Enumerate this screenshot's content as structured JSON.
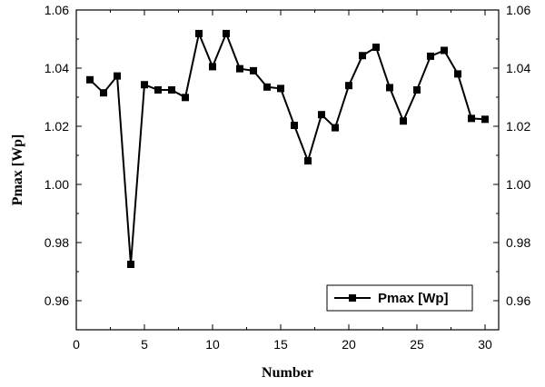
{
  "chart_data": {
    "type": "line",
    "title": "",
    "xlabel": "Number",
    "ylabel": "Pmax [Wp]",
    "xlim": [
      0,
      31
    ],
    "ylim": [
      0.95,
      1.06
    ],
    "xticks": [
      0,
      5,
      10,
      15,
      20,
      25,
      30
    ],
    "xtick_labels": [
      "0",
      "5",
      "10",
      "15",
      "20",
      "25",
      "30"
    ],
    "yticks": [
      0.96,
      0.98,
      1.0,
      1.02,
      1.04,
      1.06
    ],
    "ytick_labels": [
      "0.96",
      "0.98",
      "1.00",
      "1.02",
      "1.04",
      "1.06"
    ],
    "right_axis_mirrored": true,
    "grid": false,
    "legend_position": "bottom-right",
    "series": [
      {
        "name": "Pmax [Wp]",
        "color": "#000000",
        "marker": "square",
        "x": [
          1,
          2,
          3,
          4,
          5,
          6,
          7,
          8,
          9,
          10,
          11,
          12,
          13,
          14,
          15,
          16,
          17,
          18,
          19,
          20,
          21,
          22,
          23,
          24,
          25,
          26,
          27,
          28,
          29,
          30
        ],
        "values": [
          1.036,
          1.0315,
          1.0373,
          0.9725,
          1.0343,
          1.0325,
          1.0325,
          1.0299,
          1.0519,
          1.0405,
          1.0519,
          1.0398,
          1.0391,
          1.0335,
          1.033,
          1.0203,
          1.0081,
          1.024,
          1.0195,
          1.034,
          1.0443,
          1.0472,
          1.0333,
          1.0218,
          1.0325,
          1.0441,
          1.0461,
          1.038,
          1.0227,
          1.0224
        ]
      }
    ]
  }
}
